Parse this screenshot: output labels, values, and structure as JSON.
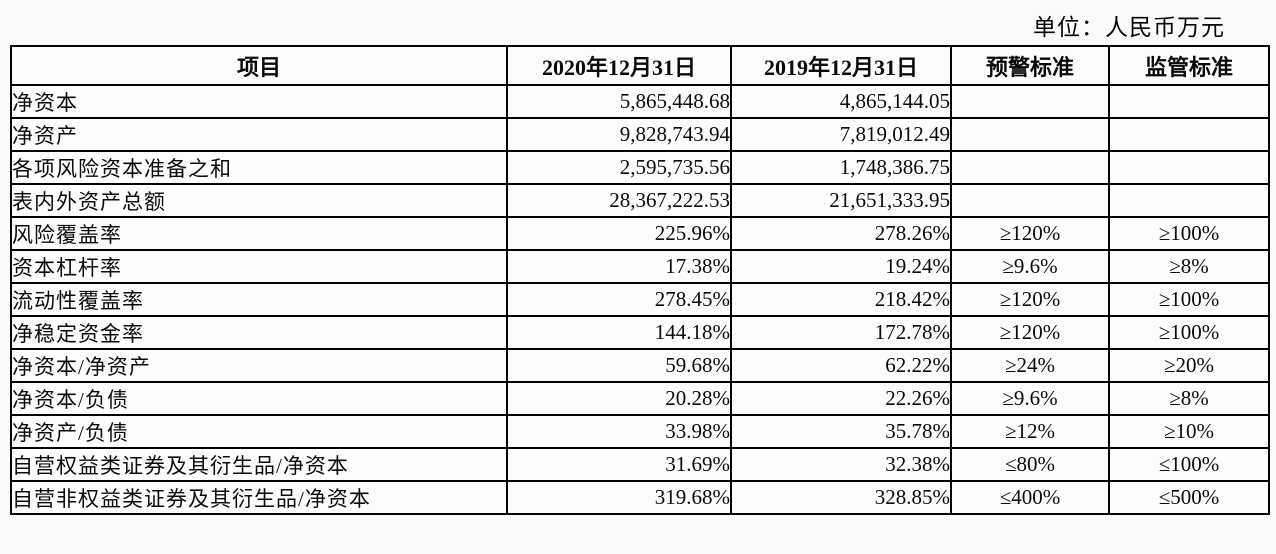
{
  "unit_label": "单位：人民币万元",
  "table": {
    "headers": [
      "项目",
      "2020年12月31日",
      "2019年12月31日",
      "预警标准",
      "监管标准"
    ],
    "rows": [
      [
        "净资本",
        "5,865,448.68",
        "4,865,144.05",
        "",
        ""
      ],
      [
        "净资产",
        "9,828,743.94",
        "7,819,012.49",
        "",
        ""
      ],
      [
        "各项风险资本准备之和",
        "2,595,735.56",
        "1,748,386.75",
        "",
        ""
      ],
      [
        "表内外资产总额",
        "28,367,222.53",
        "21,651,333.95",
        "",
        ""
      ],
      [
        "风险覆盖率",
        "225.96%",
        "278.26%",
        "≥120%",
        "≥100%"
      ],
      [
        "资本杠杆率",
        "17.38%",
        "19.24%",
        "≥9.6%",
        "≥8%"
      ],
      [
        "流动性覆盖率",
        "278.45%",
        "218.42%",
        "≥120%",
        "≥100%"
      ],
      [
        "净稳定资金率",
        "144.18%",
        "172.78%",
        "≥120%",
        "≥100%"
      ],
      [
        "净资本/净资产",
        "59.68%",
        "62.22%",
        "≥24%",
        "≥20%"
      ],
      [
        "净资本/负债",
        "20.28%",
        "22.26%",
        "≥9.6%",
        "≥8%"
      ],
      [
        "净资产/负债",
        "33.98%",
        "35.78%",
        "≥12%",
        "≥10%"
      ],
      [
        "自营权益类证券及其衍生品/净资本",
        "31.69%",
        "32.38%",
        "≤80%",
        "≤100%"
      ],
      [
        "自营非权益类证券及其衍生品/净资本",
        "319.68%",
        "328.85%",
        "≤400%",
        "≤500%"
      ]
    ]
  }
}
